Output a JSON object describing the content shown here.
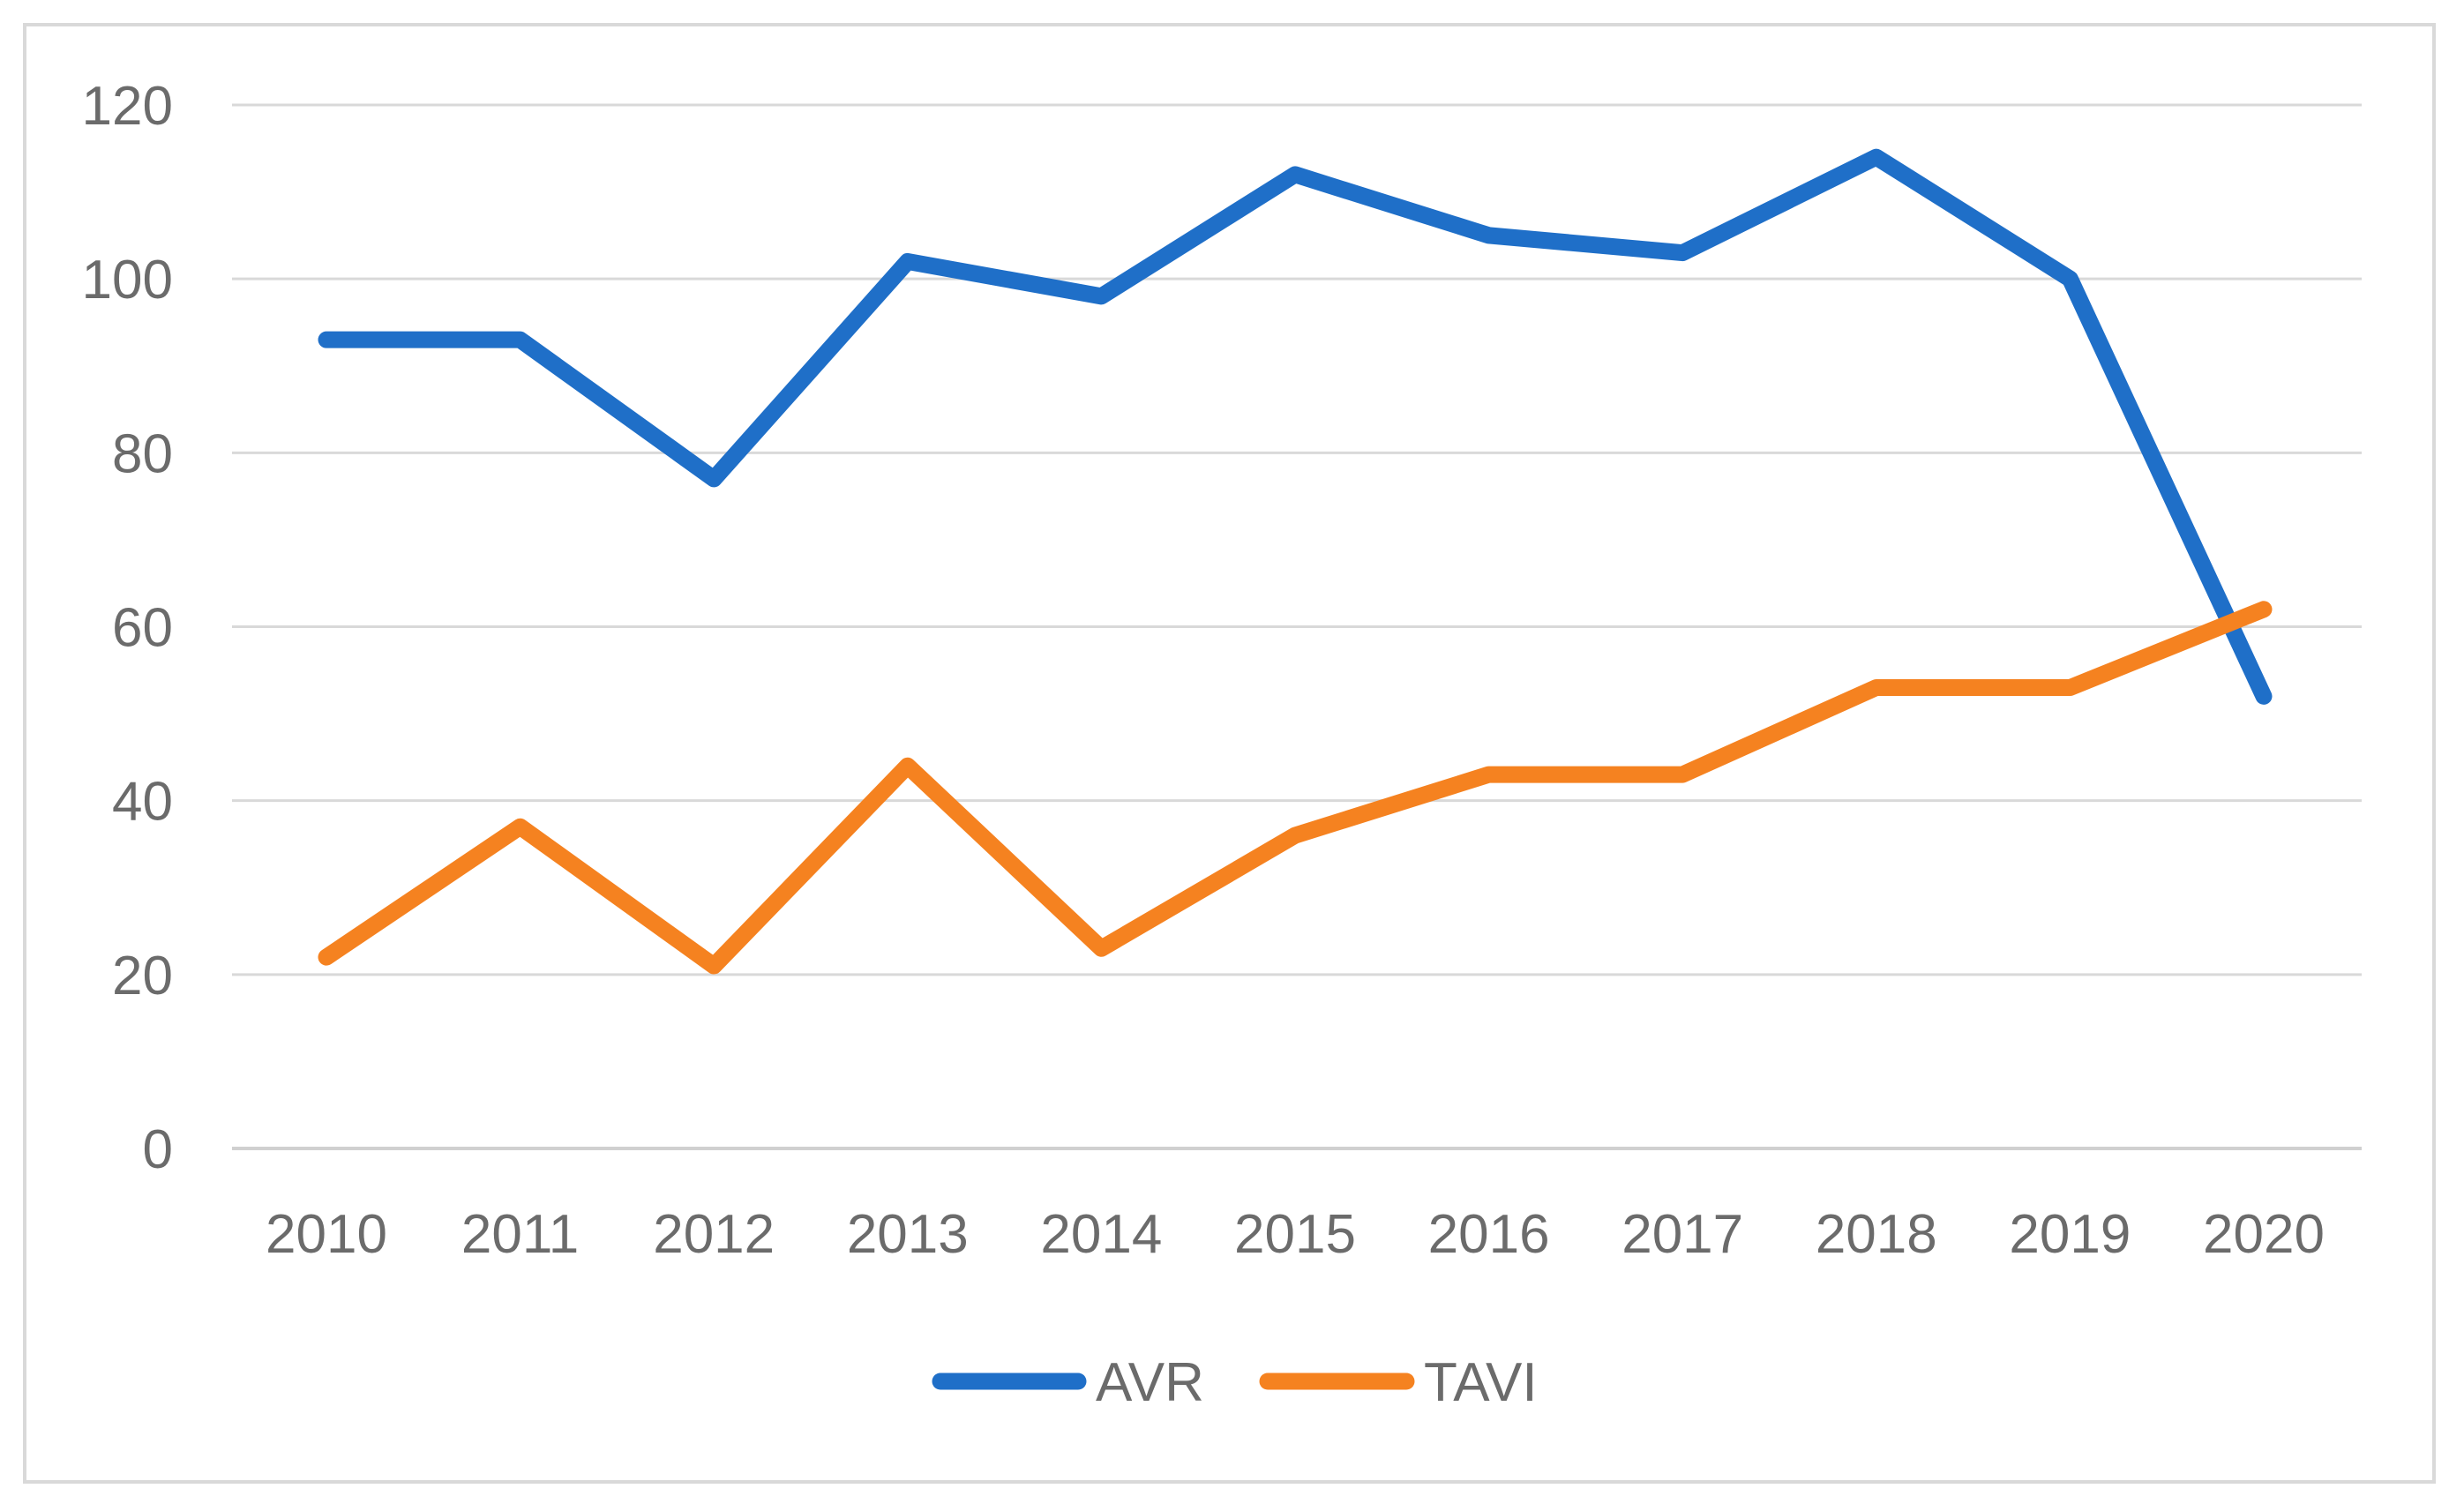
{
  "chart_data": {
    "type": "line",
    "title": "",
    "xlabel": "",
    "ylabel": "",
    "categories": [
      "2010",
      "2011",
      "2012",
      "2013",
      "2014",
      "2015",
      "2016",
      "2017",
      "2018",
      "2019",
      "2020"
    ],
    "y_ticks": [
      "0",
      "20",
      "40",
      "60",
      "80",
      "100",
      "120"
    ],
    "ylim": [
      0,
      120
    ],
    "grid": true,
    "legend_position": "bottom",
    "series": [
      {
        "name": "AVR",
        "color": "#1f6fc8",
        "values": [
          93,
          93,
          77,
          102,
          98,
          112,
          105,
          103,
          114,
          100,
          52
        ]
      },
      {
        "name": "TAVI",
        "color": "#f58220",
        "values": [
          22,
          37,
          21,
          44,
          23,
          36,
          43,
          43,
          53,
          53,
          62
        ]
      }
    ]
  }
}
